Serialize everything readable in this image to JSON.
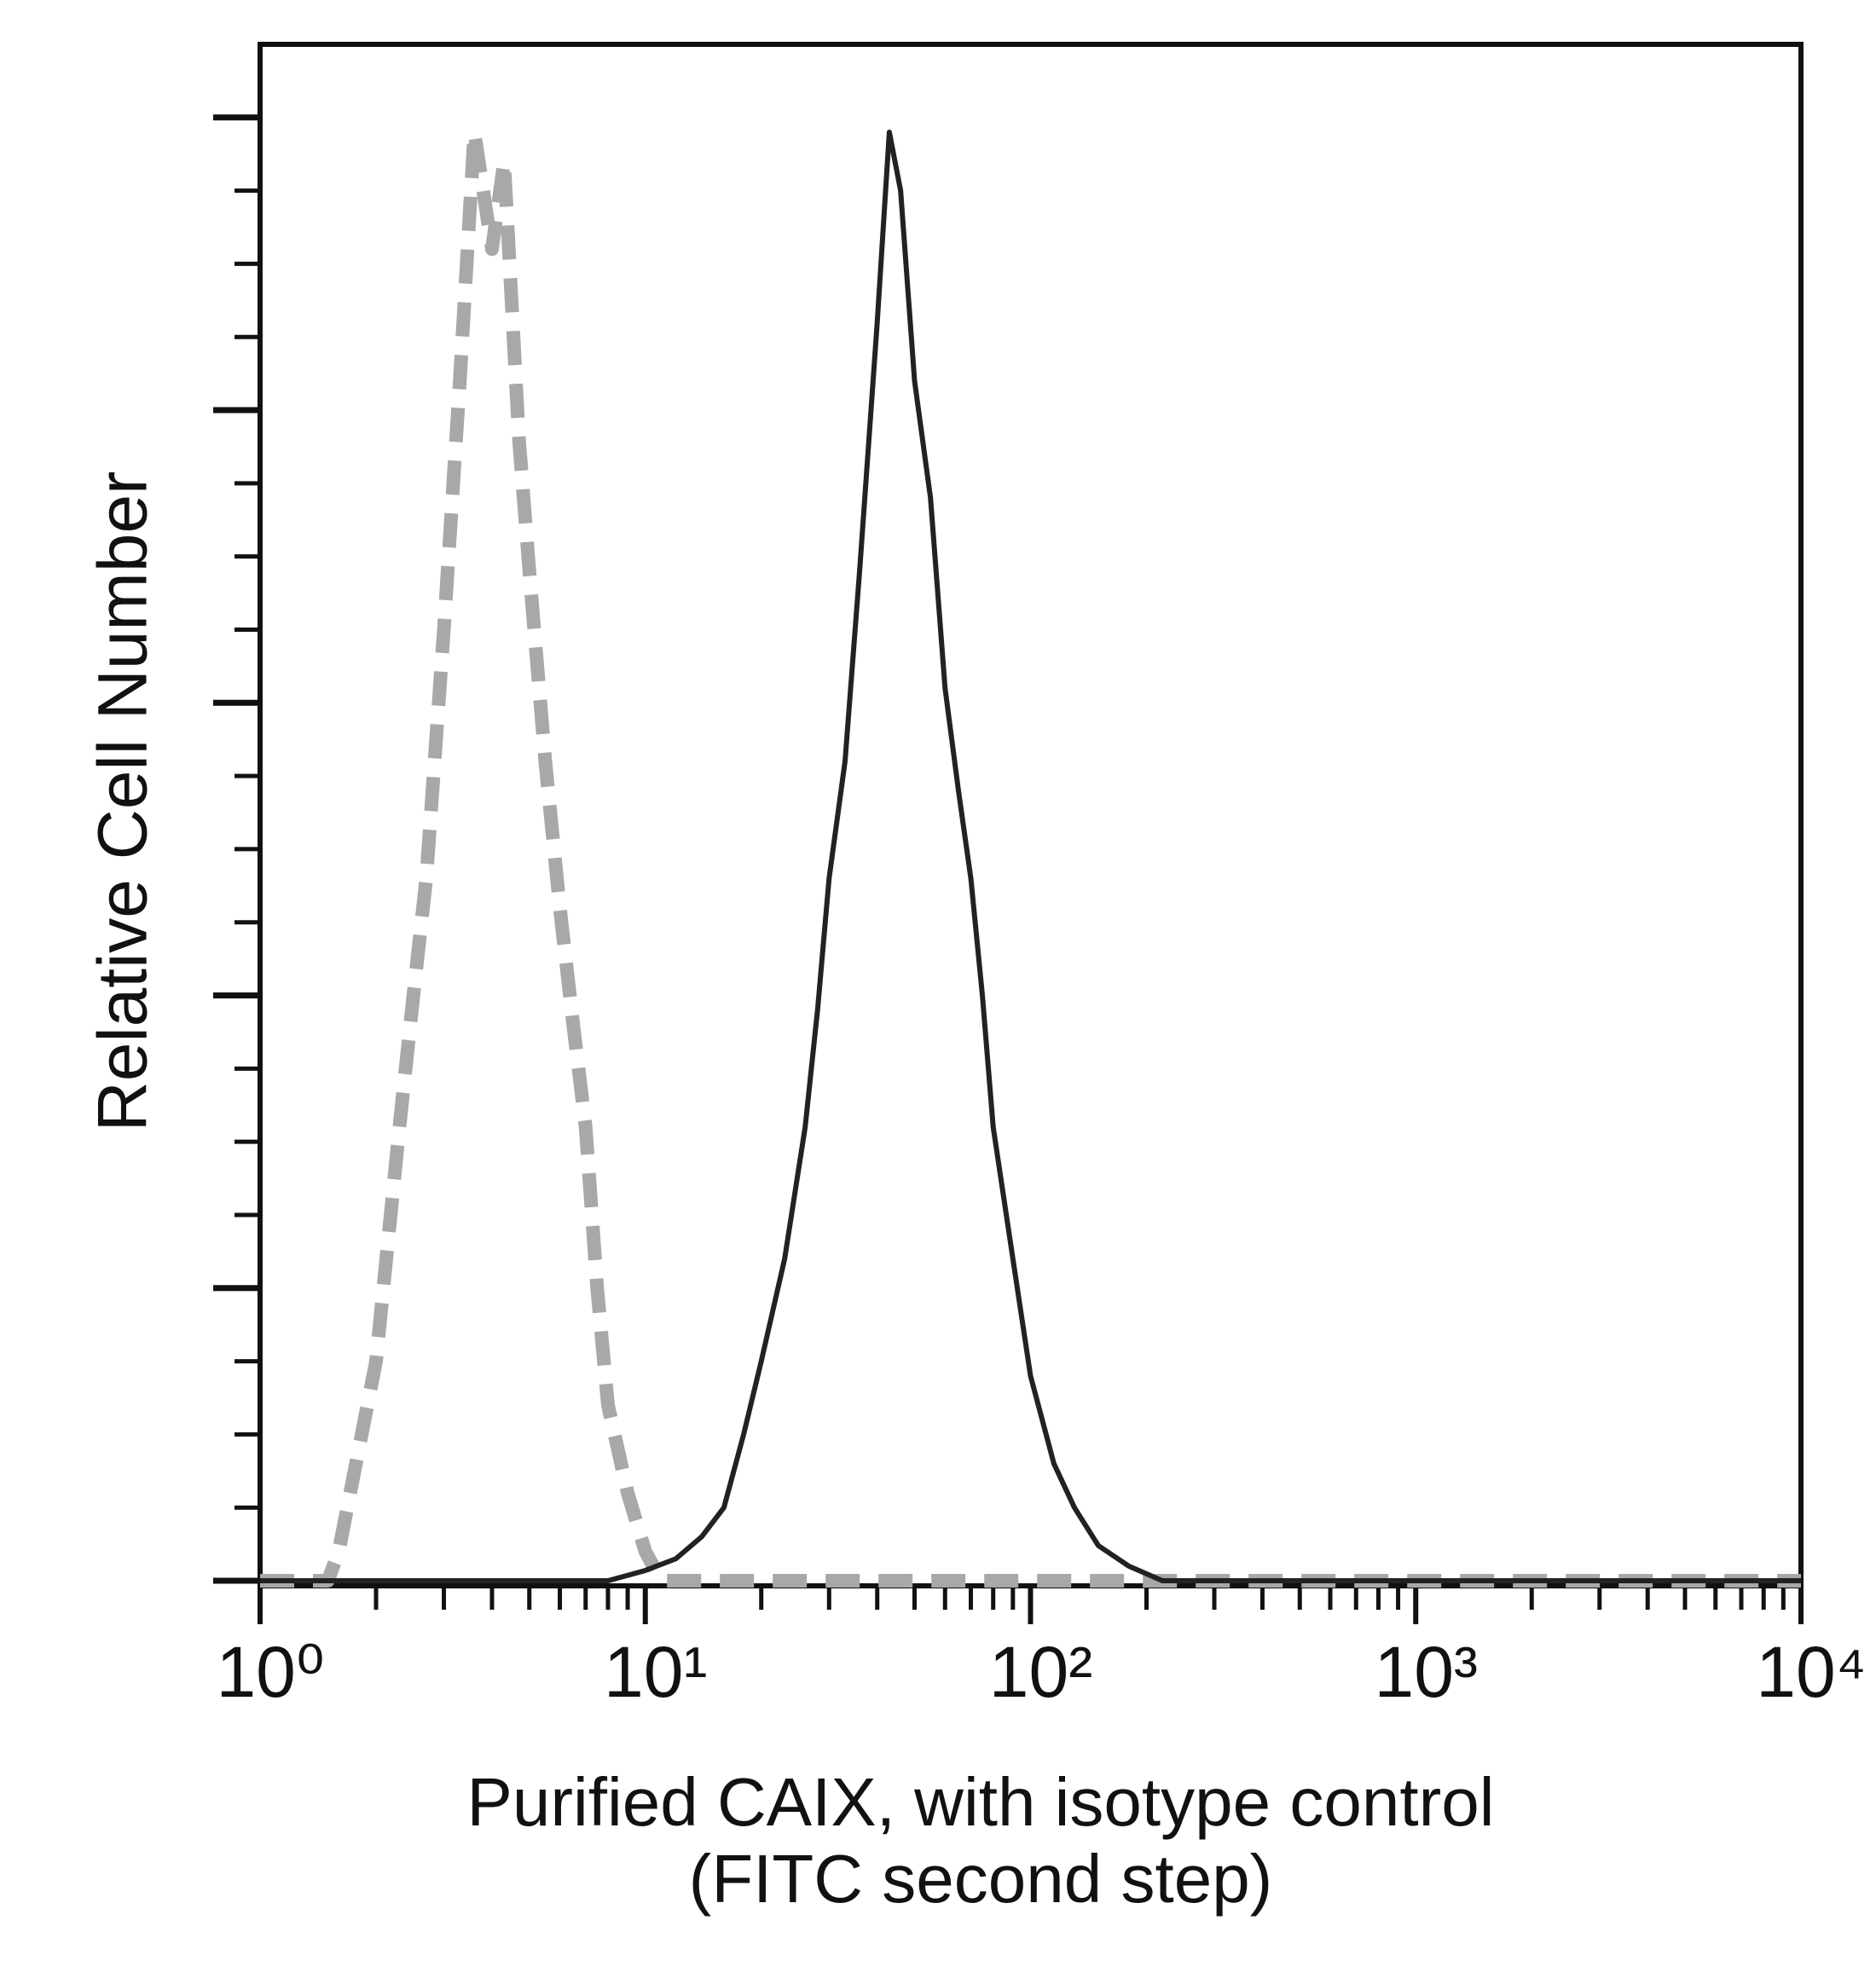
{
  "chart_data": {
    "type": "line",
    "ylabel": "Relative Cell Number",
    "xlabel": [
      "Purified CAIX, with isotype control",
      "(FITC second step)"
    ],
    "log_x": true,
    "xlim": [
      1,
      10000
    ],
    "xticks": [
      {
        "value": 1,
        "label": "10⁰"
      },
      {
        "value": 10,
        "label": "10¹"
      },
      {
        "value": 100,
        "label": "10²"
      },
      {
        "value": 1000,
        "label": "10³"
      },
      {
        "value": 10000,
        "label": "10⁴"
      }
    ],
    "xminor_ticks": [
      2,
      3,
      4,
      5,
      6,
      7,
      8,
      9,
      20,
      30,
      40,
      50,
      60,
      70,
      80,
      90,
      200,
      300,
      400,
      500,
      600,
      700,
      800,
      900,
      2000,
      3000,
      4000,
      5000,
      6000,
      7000,
      8000,
      9000
    ],
    "ylim": [
      0,
      105
    ],
    "yticks": [
      0,
      20,
      40,
      60,
      80,
      100
    ],
    "yminor_ticks": [
      5,
      10,
      15,
      25,
      30,
      35,
      45,
      50,
      55,
      65,
      70,
      75,
      85,
      90,
      95
    ],
    "ytick_labels": false,
    "series": [
      {
        "color": "#a8a8a8",
        "dashed": true,
        "x": [
          1,
          1.5,
          1.6,
          2,
          2.3,
          2.5,
          2.7,
          3,
          3.3,
          3.6,
          4,
          4.3,
          4.7,
          5,
          5.5,
          6,
          6.5,
          7,
          7.5,
          8,
          9,
          10,
          11,
          10000
        ],
        "values": [
          0,
          0,
          2,
          15,
          31,
          40,
          48,
          65,
          82,
          99,
          91,
          97,
          78,
          69,
          56,
          46,
          38,
          31,
          20,
          12,
          6,
          2,
          0,
          0
        ]
      },
      {
        "color": "#222222",
        "dashed": false,
        "x": [
          1,
          8,
          10,
          12,
          14,
          16,
          18,
          20,
          23,
          26,
          28,
          30,
          33,
          36,
          40,
          43,
          46,
          50,
          55,
          60,
          65,
          70,
          75,
          80,
          90,
          100,
          115,
          130,
          150,
          180,
          220,
          10000
        ],
        "values": [
          0,
          0,
          0.7,
          1.5,
          3,
          5,
          10,
          15,
          22,
          31,
          39,
          48,
          56,
          69,
          86,
          99,
          95,
          82,
          74,
          61,
          54,
          48,
          40,
          31,
          22,
          14,
          8,
          5,
          2.4,
          1,
          0,
          0
        ]
      }
    ]
  }
}
